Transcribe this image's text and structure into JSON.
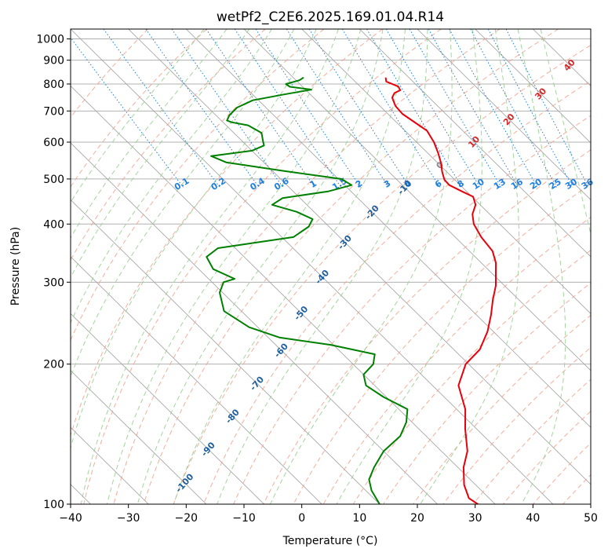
{
  "chart_data": {
    "type": "skew-t log-p",
    "title": "wetPf2_C2E6.2025.169.01.04.R14",
    "xlabel": "Temperature (°C)",
    "ylabel": "Pressure (hPa)",
    "xlim": [
      -40,
      50
    ],
    "ylim": [
      1050,
      100
    ],
    "y_scale": "log",
    "grid": true,
    "x_ticks": [
      "−40",
      "−30",
      "−20",
      "−10",
      "0",
      "10",
      "20",
      "30",
      "40",
      "50"
    ],
    "y_ticks": [
      "100",
      "200",
      "300",
      "400",
      "500",
      "600",
      "700",
      "800",
      "900",
      "1000"
    ],
    "dry_adiabat_labels": [
      "-100",
      "-90",
      "-80",
      "-70",
      "-60",
      "-50",
      "-40",
      "-30",
      "-20",
      "-10",
      "0",
      "10",
      "20",
      "30",
      "40"
    ],
    "mixing_ratio_labels": [
      "0.1",
      "0.2",
      "0.4",
      "0.6",
      "1",
      "1.5",
      "2",
      "3",
      "4",
      "6",
      "8",
      "10",
      "13",
      "16",
      "20",
      "25",
      "30",
      "36"
    ],
    "colors": {
      "temperature": "#e8000b",
      "dewpoint": "#008000",
      "isotherm_skew": "#9e9e9e",
      "dry_adiabat": "#f4a08a",
      "moist_adiabat": "#9bcf93",
      "mixing_ratio": "#1f7fe0",
      "dry_adiabat_label_cold": "#1f5fa0",
      "dry_adiabat_label_warm": "#d62728",
      "mixing_ratio_label": "#1f7fe0"
    },
    "series": [
      {
        "name": "Temperature",
        "points": [
          [
            6.0,
            826
          ],
          [
            5.4,
            810
          ],
          [
            6.6,
            790
          ],
          [
            6.3,
            776
          ],
          [
            4.8,
            765
          ],
          [
            3.6,
            748
          ],
          [
            2.7,
            718
          ],
          [
            2.5,
            690
          ],
          [
            3.2,
            660
          ],
          [
            3.8,
            635
          ],
          [
            3.0,
            600
          ],
          [
            1.8,
            568
          ],
          [
            0.5,
            540
          ],
          [
            -0.8,
            518
          ],
          [
            -1.8,
            498
          ],
          [
            -1.9,
            485
          ],
          [
            -0.8,
            470
          ],
          [
            0.2,
            458
          ],
          [
            -0.8,
            440
          ],
          [
            -3.0,
            420
          ],
          [
            -4.5,
            400
          ],
          [
            -5.5,
            375
          ],
          [
            -6.0,
            350
          ],
          [
            -7.5,
            330
          ],
          [
            -9.5,
            312
          ],
          [
            -11.5,
            295
          ],
          [
            -14.5,
            275
          ],
          [
            -17.5,
            255
          ],
          [
            -21.0,
            235
          ],
          [
            -25.5,
            215
          ],
          [
            -30.5,
            200
          ],
          [
            -35.5,
            180
          ],
          [
            -38.5,
            160
          ],
          [
            -42.0,
            145
          ],
          [
            -45.5,
            130
          ],
          [
            -49.0,
            120
          ],
          [
            -52.0,
            110
          ],
          [
            -53.5,
            103
          ],
          [
            -53.0,
            100
          ]
        ]
      },
      {
        "name": "Dewpoint",
        "points": [
          [
            -8.2,
            826
          ],
          [
            -9.4,
            815
          ],
          [
            -12.4,
            800
          ],
          [
            -12.2,
            789
          ],
          [
            -9.0,
            778
          ],
          [
            -14.5,
            760
          ],
          [
            -21.0,
            738
          ],
          [
            -25.0,
            712
          ],
          [
            -27.7,
            685
          ],
          [
            -29.0,
            668
          ],
          [
            -28.5,
            662
          ],
          [
            -26.2,
            652
          ],
          [
            -25.2,
            628
          ],
          [
            -26.3,
            605
          ],
          [
            -27.0,
            590
          ],
          [
            -30.0,
            575
          ],
          [
            -38.0,
            560
          ],
          [
            -36.5,
            543
          ],
          [
            -28.0,
            520
          ],
          [
            -19.5,
            500
          ],
          [
            -18.8,
            485
          ],
          [
            -24.0,
            470
          ],
          [
            -33.0,
            455
          ],
          [
            -36.0,
            440
          ],
          [
            -33.0,
            425
          ],
          [
            -31.5,
            410
          ],
          [
            -33.5,
            395
          ],
          [
            -38.0,
            375
          ],
          [
            -53.0,
            355
          ],
          [
            -56.5,
            340
          ],
          [
            -57.5,
            320
          ],
          [
            -55.5,
            305
          ],
          [
            -58.0,
            300
          ],
          [
            -60.5,
            285
          ],
          [
            -63.0,
            260
          ],
          [
            -61.5,
            240
          ],
          [
            -58.0,
            228
          ],
          [
            -50.5,
            220
          ],
          [
            -44.5,
            210
          ],
          [
            -46.5,
            200
          ],
          [
            -50.0,
            190
          ],
          [
            -51.5,
            180
          ],
          [
            -50.5,
            170
          ],
          [
            -48.5,
            160
          ],
          [
            -51.0,
            150
          ],
          [
            -54.5,
            140
          ],
          [
            -60.0,
            130
          ],
          [
            -64.5,
            120
          ],
          [
            -67.5,
            113
          ],
          [
            -69.0,
            107
          ],
          [
            -70.0,
            100
          ]
        ]
      }
    ]
  }
}
